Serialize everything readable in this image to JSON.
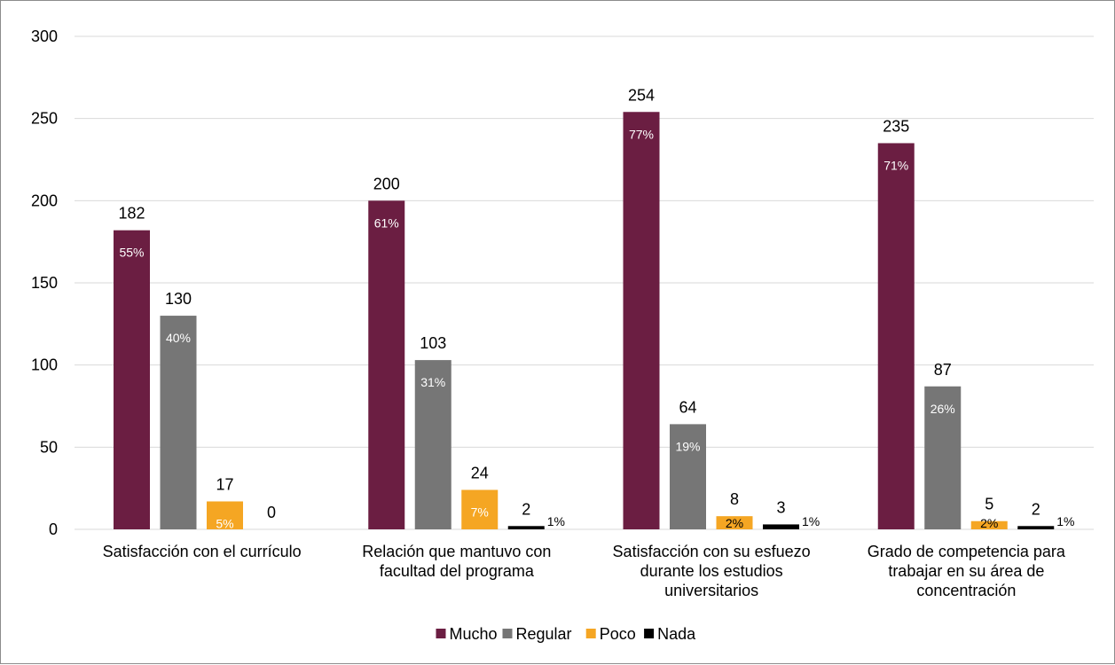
{
  "chart_data": {
    "type": "bar",
    "title": "",
    "xlabel": "",
    "ylabel": "",
    "ylim": [
      0,
      300
    ],
    "yticks": [
      "0",
      "50",
      "100",
      "150",
      "200",
      "250",
      "300"
    ],
    "grid": true,
    "legend_position": "bottom",
    "categories": [
      [
        "Satisfacción con el currículo"
      ],
      [
        "Relación que mantuvo con",
        "facultad del programa"
      ],
      [
        "Satisfacción con su esfuezo",
        "durante los estudios",
        "universitarios"
      ],
      [
        "Grado de competencia para",
        "trabajar en su área de",
        "concentración"
      ]
    ],
    "series": [
      {
        "name": "Mucho",
        "color": "#6b1e42",
        "values": [
          182,
          200,
          254,
          235
        ],
        "value_labels": [
          "182",
          "200",
          "254",
          "235"
        ],
        "percent_labels": [
          "55%",
          "61%",
          "77%",
          "71%"
        ]
      },
      {
        "name": "Regular",
        "color": "#767676",
        "values": [
          130,
          103,
          64,
          87
        ],
        "value_labels": [
          "130",
          "103",
          "64",
          "87"
        ],
        "percent_labels": [
          "40%",
          "31%",
          "19%",
          "26%"
        ]
      },
      {
        "name": "Poco",
        "color": "#f5a623",
        "values": [
          17,
          24,
          8,
          5
        ],
        "value_labels": [
          "17",
          "24",
          "8",
          "5"
        ],
        "percent_labels": [
          "5%",
          "7%",
          "2%",
          "2%"
        ]
      },
      {
        "name": "Nada",
        "color": "#000000",
        "values": [
          0,
          2,
          3,
          2
        ],
        "value_labels": [
          "0",
          "2",
          "3",
          "2"
        ],
        "percent_labels": [
          "",
          "1%",
          "1%",
          "1%"
        ]
      }
    ]
  }
}
